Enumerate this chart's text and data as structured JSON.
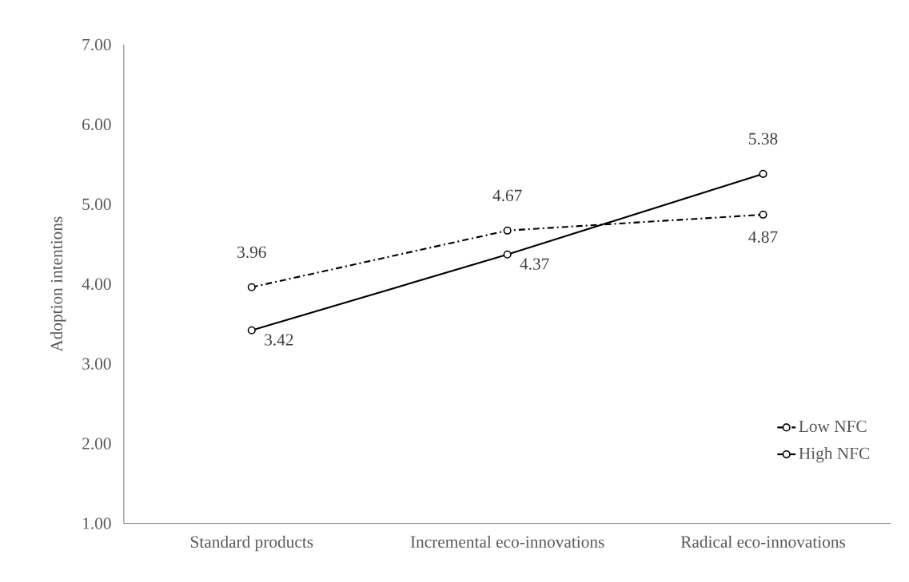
{
  "chart_data": {
    "type": "line",
    "ylabel": "Adoption intentions",
    "categories": [
      "Standard products",
      "Incremental eco-innovations",
      "Radical eco-innovations"
    ],
    "series": [
      {
        "name": "Low NFC",
        "color": "#000000",
        "values": [
          3.96,
          4.67,
          4.87
        ],
        "line_style": "dashed"
      },
      {
        "name": "High NFC",
        "color": "#000000",
        "values": [
          3.42,
          4.37,
          5.38
        ],
        "line_style": "solid"
      }
    ],
    "ylim": [
      1,
      7
    ],
    "yticks": [
      {
        "value": 1,
        "label": "1.00"
      },
      {
        "value": 2,
        "label": "2.00"
      },
      {
        "value": 3,
        "label": "3.00"
      },
      {
        "value": 4,
        "label": "4.00"
      },
      {
        "value": 5,
        "label": "5.00"
      },
      {
        "value": 6,
        "label": "6.00"
      },
      {
        "value": 7,
        "label": "7.00"
      }
    ],
    "grid": false,
    "legend": "bottom right",
    "marker": "circle",
    "data_labels": true
  }
}
